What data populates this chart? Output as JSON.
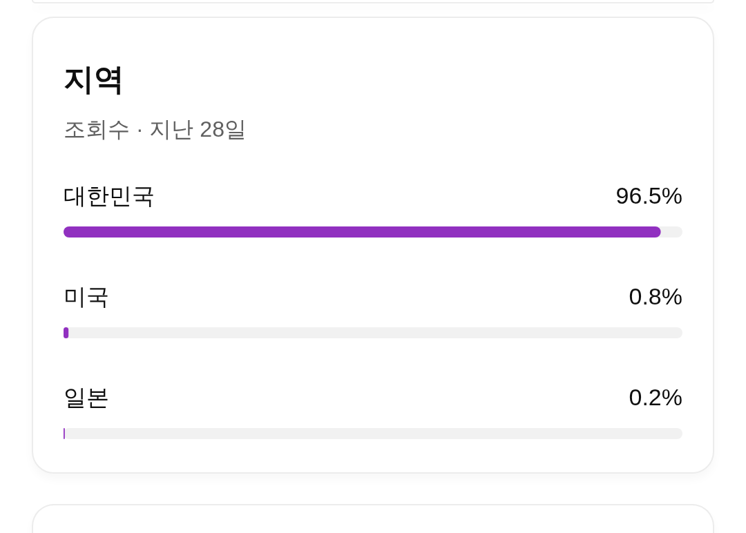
{
  "chart_data": {
    "type": "bar",
    "orientation": "horizontal",
    "title": "지역",
    "subtitle": "조회수 · 지난 28일",
    "categories": [
      "대한민국",
      "미국",
      "일본"
    ],
    "series": [
      {
        "color": "#9130c0",
        "values": [
          96.5,
          0.8,
          0.2
        ],
        "value_labels": [
          "96.5%",
          "0.8%",
          "0.2%"
        ]
      }
    ],
    "xlim": [
      0,
      100
    ],
    "tick_labels": "y"
  }
}
